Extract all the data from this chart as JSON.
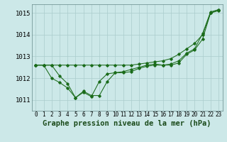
{
  "bg_color": "#cce8e8",
  "grid_color": "#aacccc",
  "line_color": "#1a6b1a",
  "xlabel": "Graphe pression niveau de la mer (hPa)",
  "xlabel_fontsize": 7.5,
  "ylabel_fontsize": 6.5,
  "tick_fontsize": 5.5,
  "xlim": [
    -0.5,
    23.5
  ],
  "ylim": [
    1010.5,
    1015.4
  ],
  "yticks": [
    1011,
    1012,
    1013,
    1014,
    1015
  ],
  "xticks": [
    0,
    1,
    2,
    3,
    4,
    5,
    6,
    7,
    8,
    9,
    10,
    11,
    12,
    13,
    14,
    15,
    16,
    17,
    18,
    19,
    20,
    21,
    22,
    23
  ],
  "series1": [
    1012.6,
    1012.6,
    1012.6,
    1012.6,
    1012.6,
    1012.6,
    1012.6,
    1012.6,
    1012.6,
    1012.6,
    1012.6,
    1012.6,
    1012.6,
    1012.65,
    1012.7,
    1012.75,
    1012.8,
    1012.9,
    1013.1,
    1013.35,
    1013.6,
    1014.0,
    1015.0,
    1015.15
  ],
  "series2": [
    1012.6,
    1012.6,
    1012.6,
    1012.1,
    1011.75,
    1011.1,
    1011.4,
    1011.2,
    1011.2,
    1011.85,
    1012.25,
    1012.25,
    1012.3,
    1012.45,
    1012.55,
    1012.6,
    1012.6,
    1012.6,
    1012.7,
    1013.1,
    1013.3,
    1013.8,
    1015.0,
    1015.1
  ],
  "series3": [
    1012.6,
    1012.6,
    1012.0,
    1011.8,
    1011.55,
    1011.1,
    1011.35,
    1011.15,
    1011.85,
    1012.2,
    1012.25,
    1012.3,
    1012.4,
    1012.5,
    1012.6,
    1012.65,
    1012.6,
    1012.65,
    1012.8,
    1013.15,
    1013.35,
    1014.05,
    1015.05,
    1015.15
  ]
}
